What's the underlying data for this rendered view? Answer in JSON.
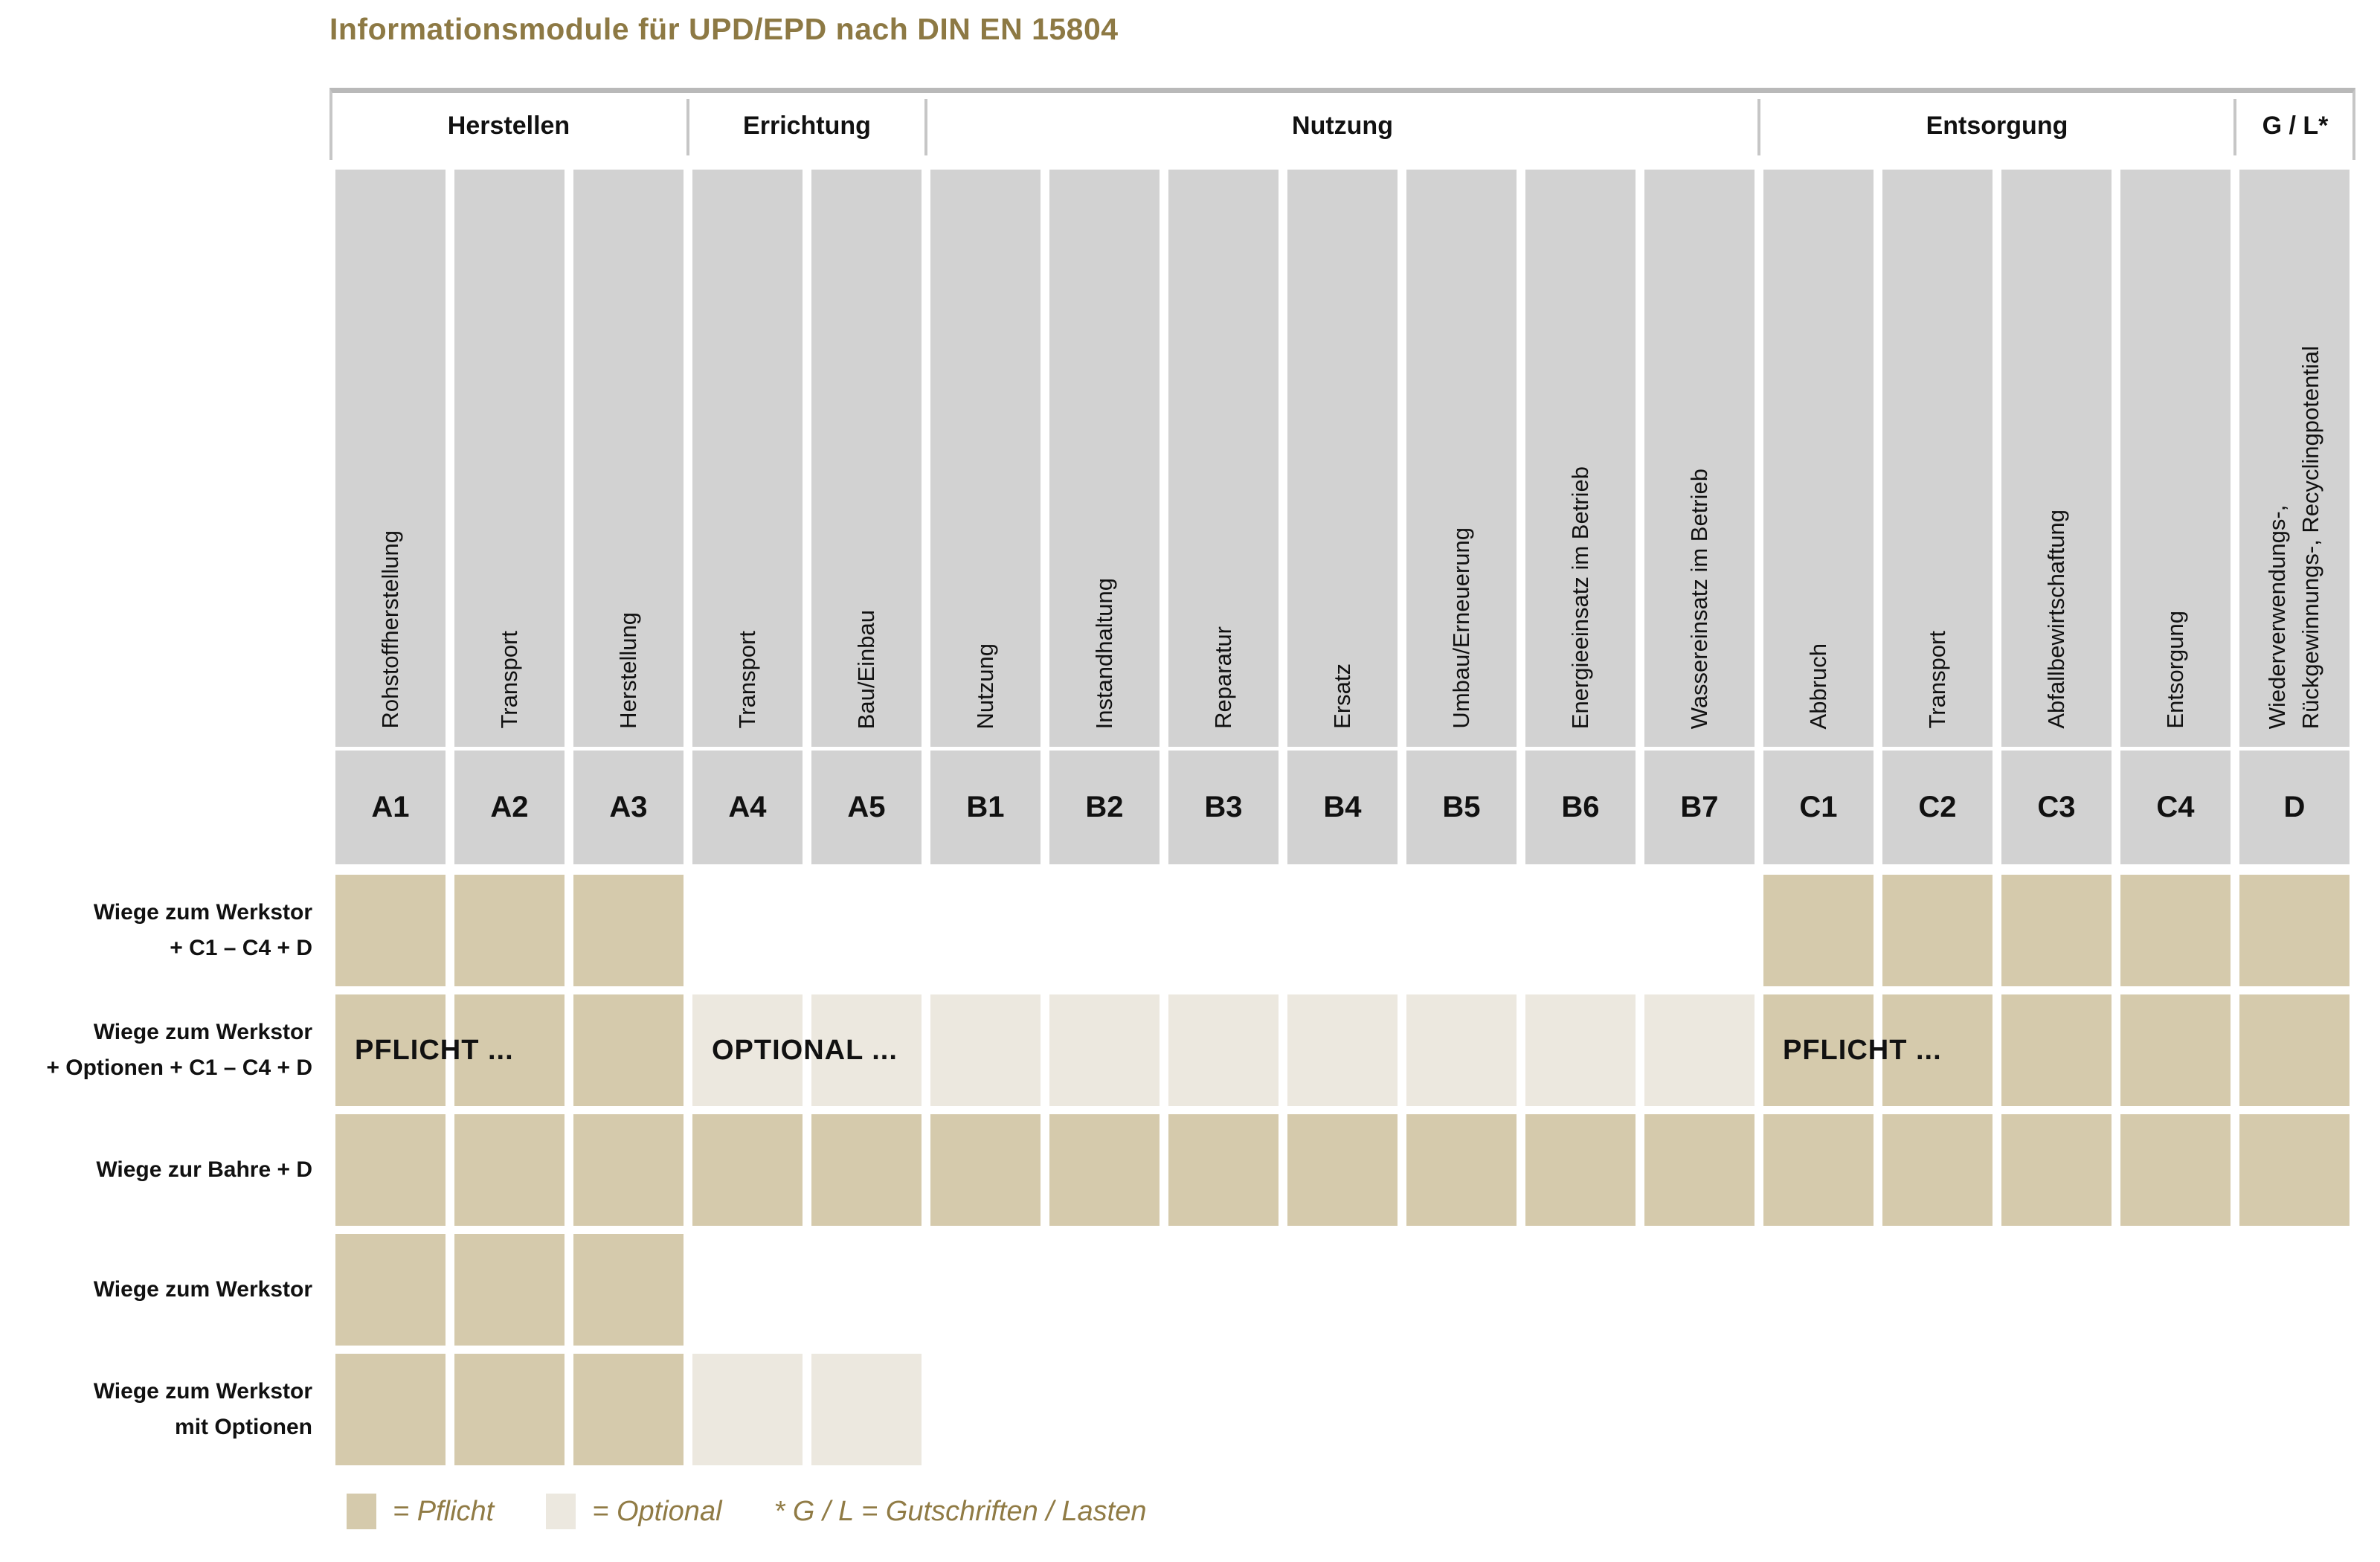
{
  "title": "Informationsmodule für UPD/EPD nach DIN EN 15804",
  "groups": [
    {
      "label": "Herstellen",
      "span": 3
    },
    {
      "label": "Errichtung",
      "span": 2
    },
    {
      "label": "Nutzung",
      "span": 7
    },
    {
      "label": "Entsorgung",
      "span": 4
    },
    {
      "label": "G / L*",
      "span": 1
    }
  ],
  "columns": [
    {
      "code": "A1",
      "label_lines": [
        "Rohstoffherstellung"
      ]
    },
    {
      "code": "A2",
      "label_lines": [
        "Transport"
      ]
    },
    {
      "code": "A3",
      "label_lines": [
        "Herstellung"
      ]
    },
    {
      "code": "A4",
      "label_lines": [
        "Transport"
      ]
    },
    {
      "code": "A5",
      "label_lines": [
        "Bau/Einbau"
      ]
    },
    {
      "code": "B1",
      "label_lines": [
        "Nutzung"
      ]
    },
    {
      "code": "B2",
      "label_lines": [
        "Instandhaltung"
      ]
    },
    {
      "code": "B3",
      "label_lines": [
        "Reparatur"
      ]
    },
    {
      "code": "B4",
      "label_lines": [
        "Ersatz"
      ]
    },
    {
      "code": "B5",
      "label_lines": [
        "Umbau/Erneuerung"
      ]
    },
    {
      "code": "B6",
      "label_lines": [
        "Energieeinsatz im Betrieb"
      ]
    },
    {
      "code": "B7",
      "label_lines": [
        "Wassereinsatz im Betrieb"
      ]
    },
    {
      "code": "C1",
      "label_lines": [
        "Abbruch"
      ]
    },
    {
      "code": "C2",
      "label_lines": [
        "Transport"
      ]
    },
    {
      "code": "C3",
      "label_lines": [
        "Abfallbewirtschaftung"
      ]
    },
    {
      "code": "C4",
      "label_lines": [
        "Entsorgung"
      ]
    },
    {
      "code": "D",
      "label_lines": [
        "Wiederverwendungs-,",
        "Rückgewinnungs-, Recyclingpotential"
      ]
    }
  ],
  "rows": [
    {
      "label_lines": [
        "Wiege zum Werkstor",
        "+ C1 – C4 + D"
      ],
      "cells": [
        "P",
        "P",
        "P",
        "",
        "",
        "",
        "",
        "",
        "",
        "",
        "",
        "",
        "P",
        "P",
        "P",
        "P",
        "P"
      ],
      "overlays": []
    },
    {
      "label_lines": [
        "Wiege zum Werkstor",
        "+ Optionen + C1 – C4 + D"
      ],
      "cells": [
        "P",
        "P",
        "P",
        "O",
        "O",
        "O",
        "O",
        "O",
        "O",
        "O",
        "O",
        "O",
        "P",
        "P",
        "P",
        "P",
        "P"
      ],
      "overlays": [
        {
          "text": "PFLICHT ...",
          "col": 0
        },
        {
          "text": "OPTIONAL ...",
          "col": 3
        },
        {
          "text": "PFLICHT ...",
          "col": 12
        }
      ]
    },
    {
      "label_lines": [
        "Wiege zur Bahre + D"
      ],
      "cells": [
        "P",
        "P",
        "P",
        "P",
        "P",
        "P",
        "P",
        "P",
        "P",
        "P",
        "P",
        "P",
        "P",
        "P",
        "P",
        "P",
        "P"
      ],
      "overlays": []
    },
    {
      "label_lines": [
        "Wiege zum Werkstor"
      ],
      "cells": [
        "P",
        "P",
        "P",
        "",
        "",
        "",
        "",
        "",
        "",
        "",
        "",
        "",
        "",
        "",
        "",
        "",
        ""
      ],
      "overlays": []
    },
    {
      "label_lines": [
        "Wiege zum Werkstor",
        "mit Optionen"
      ],
      "cells": [
        "P",
        "P",
        "P",
        "O",
        "O",
        "",
        "",
        "",
        "",
        "",
        "",
        "",
        "",
        "",
        "",
        "",
        ""
      ],
      "overlays": []
    }
  ],
  "legend": {
    "pflicht": "= Pflicht",
    "optional": "= Optional",
    "note": "* G / L = Gutschriften / Lasten"
  },
  "colors": {
    "pflicht": "#d5caac",
    "optional": "#ece8df",
    "column_gray": "#d2d2d2",
    "accent_gold": "#8d7944",
    "band_border": "#b9b9b9"
  }
}
